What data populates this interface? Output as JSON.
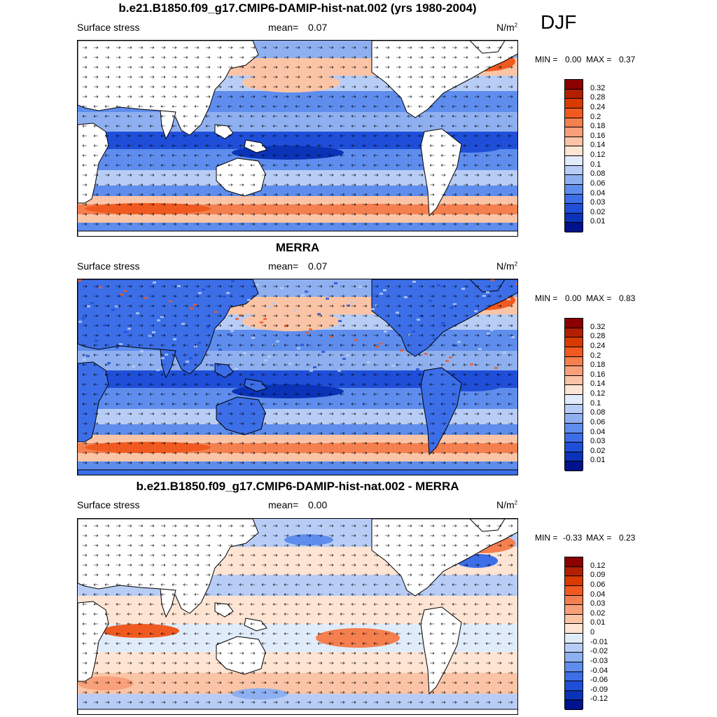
{
  "season": "DJF",
  "panels": [
    {
      "title": "b.e21.B1850.f09_g17.CMIP6-DAMIP-hist-nat.002 (yrs 1980-2004)",
      "variable": "Surface stress",
      "mean_label": "mean=",
      "mean_value": "0.07",
      "units": "N/m",
      "units_exp": "2",
      "min_label": "MIN =",
      "min_value": "0.00",
      "max_label": "MAX =",
      "max_value": "0.37"
    },
    {
      "title": "MERRA",
      "variable": "Surface stress",
      "mean_label": "mean=",
      "mean_value": "0.07",
      "units": "N/m",
      "units_exp": "2",
      "min_label": "MIN =",
      "min_value": "0.00",
      "max_label": "MAX =",
      "max_value": "0.83"
    },
    {
      "title": "b.e21.B1850.f09_g17.CMIP6-DAMIP-hist-nat.002 - MERRA",
      "variable": "Surface stress",
      "mean_label": "mean=",
      "mean_value": "0.00",
      "units": "N/m",
      "units_exp": "2",
      "min_label": "MIN =",
      "min_value": "-0.33",
      "max_label": "MAX =",
      "max_value": "0.23"
    }
  ],
  "chart_data": [
    {
      "type": "heatmap",
      "title": "b.e21.B1850.f09_g17.CMIP6-DAMIP-hist-nat.002 (yrs 1980-2004)",
      "variable": "Surface stress",
      "units": "N/m2",
      "mean": 0.07,
      "min": 0.0,
      "max": 0.37,
      "colorbar_levels": [
        "0.32",
        "0.28",
        "0.24",
        "0.2",
        "0.18",
        "0.16",
        "0.14",
        "0.12",
        "0.1",
        "0.08",
        "0.06",
        "0.04",
        "0.03",
        "0.02",
        "0.01"
      ],
      "colorbar_colors": [
        "#8b0000",
        "#b21f00",
        "#d93a00",
        "#f05a20",
        "#f47f4f",
        "#f8a07a",
        "#fbc4a6",
        "#fee4d3",
        "#e1ecfb",
        "#b8cdf6",
        "#8fb0f0",
        "#5e8ded",
        "#3c6ee8",
        "#1f4fd8",
        "#0b33b8",
        "#00138c"
      ]
    },
    {
      "type": "heatmap",
      "title": "MERRA",
      "variable": "Surface stress",
      "units": "N/m2",
      "mean": 0.07,
      "min": 0.0,
      "max": 0.83,
      "colorbar_levels": [
        "0.32",
        "0.28",
        "0.24",
        "0.2",
        "0.18",
        "0.16",
        "0.14",
        "0.12",
        "0.1",
        "0.08",
        "0.06",
        "0.04",
        "0.03",
        "0.02",
        "0.01"
      ],
      "colorbar_colors": [
        "#8b0000",
        "#b21f00",
        "#d93a00",
        "#f05a20",
        "#f47f4f",
        "#f8a07a",
        "#fbc4a6",
        "#fee4d3",
        "#e1ecfb",
        "#b8cdf6",
        "#8fb0f0",
        "#5e8ded",
        "#3c6ee8",
        "#1f4fd8",
        "#0b33b8",
        "#00138c"
      ]
    },
    {
      "type": "heatmap",
      "title": "b.e21.B1850.f09_g17.CMIP6-DAMIP-hist-nat.002 - MERRA",
      "variable": "Surface stress",
      "units": "N/m2",
      "mean": 0.0,
      "min": -0.33,
      "max": 0.23,
      "colorbar_levels": [
        "0.12",
        "0.09",
        "0.06",
        "0.04",
        "0.03",
        "0.02",
        "0.01",
        "0",
        "-0.01",
        "-0.02",
        "-0.03",
        "-0.04",
        "-0.06",
        "-0.09",
        "-0.12"
      ],
      "colorbar_colors": [
        "#8b0000",
        "#b21f00",
        "#d93a00",
        "#f05a20",
        "#f47f4f",
        "#f8a07a",
        "#fbc4a6",
        "#fee4d3",
        "#e1ecfb",
        "#b8cdf6",
        "#8fb0f0",
        "#5e8ded",
        "#3c6ee8",
        "#1f4fd8",
        "#0b33b8",
        "#00138c"
      ]
    }
  ]
}
